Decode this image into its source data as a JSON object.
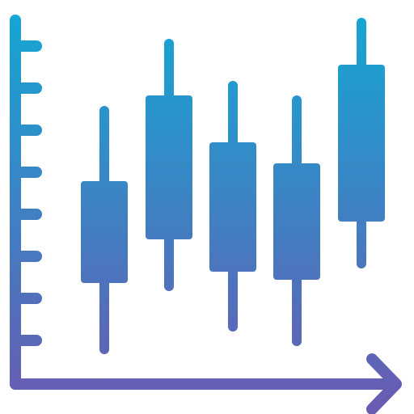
{
  "icon": {
    "name": "candlestick-chart-icon",
    "gradient": {
      "top_color": "#12A9D4",
      "bottom_color": "#6A5AB2"
    },
    "candles": [
      {
        "wick_low": 438,
        "wick_high": 131,
        "body_low": 350,
        "body_high": 224
      },
      {
        "wick_low": 360,
        "wick_high": 48,
        "body_low": 296,
        "body_high": 118
      },
      {
        "wick_low": 410,
        "wick_high": 100,
        "body_low": 336,
        "body_high": 176
      },
      {
        "wick_low": 428,
        "wick_high": 118,
        "body_low": 346,
        "body_high": 202
      },
      {
        "wick_low": 332,
        "wick_high": 22,
        "body_low": 274,
        "body_high": 80
      }
    ]
  }
}
